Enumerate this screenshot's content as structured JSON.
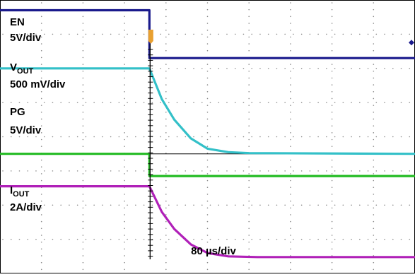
{
  "chart_data": {
    "type": "line",
    "title": "",
    "xlabel": "80 µs/div",
    "grid": true,
    "grid_divisions": {
      "x": 10,
      "y": 8
    },
    "trigger_marker_color": "#e8a030",
    "channels": [
      {
        "key": "en",
        "label_main": "EN",
        "label_sub": "",
        "scale": "5V/div",
        "color": "#1a1a8c",
        "x": [
          0,
          3.6,
          3.601,
          10
        ],
        "y": [
          7.7,
          7.7,
          6.3,
          6.3
        ],
        "end_marker": true
      },
      {
        "key": "vout",
        "label_main": "V",
        "label_sub": "OUT",
        "scale": "500 mV/div",
        "color": "#33c0c8",
        "x": [
          0,
          3.6,
          3.9,
          4.2,
          4.6,
          5.0,
          5.5,
          6.0,
          10
        ],
        "y": [
          6.0,
          6.0,
          5.1,
          4.5,
          3.95,
          3.65,
          3.55,
          3.52,
          3.5
        ],
        "end_marker": false
      },
      {
        "key": "pg",
        "label_main": "PG",
        "label_sub": "",
        "scale": "5V/div",
        "color": "#22bb22",
        "x": [
          0,
          3.6,
          3.601,
          10
        ],
        "y": [
          3.5,
          3.5,
          2.85,
          2.85
        ],
        "end_marker": false
      },
      {
        "key": "iout",
        "label_main": "I",
        "label_sub": "OUT",
        "scale": "2A/div",
        "color": "#b020b8",
        "x": [
          0,
          3.6,
          3.9,
          4.2,
          4.6,
          5.0,
          5.5,
          6.2,
          10
        ],
        "y": [
          2.55,
          2.55,
          1.8,
          1.3,
          0.85,
          0.6,
          0.5,
          0.48,
          0.48
        ],
        "end_marker": false
      }
    ]
  }
}
